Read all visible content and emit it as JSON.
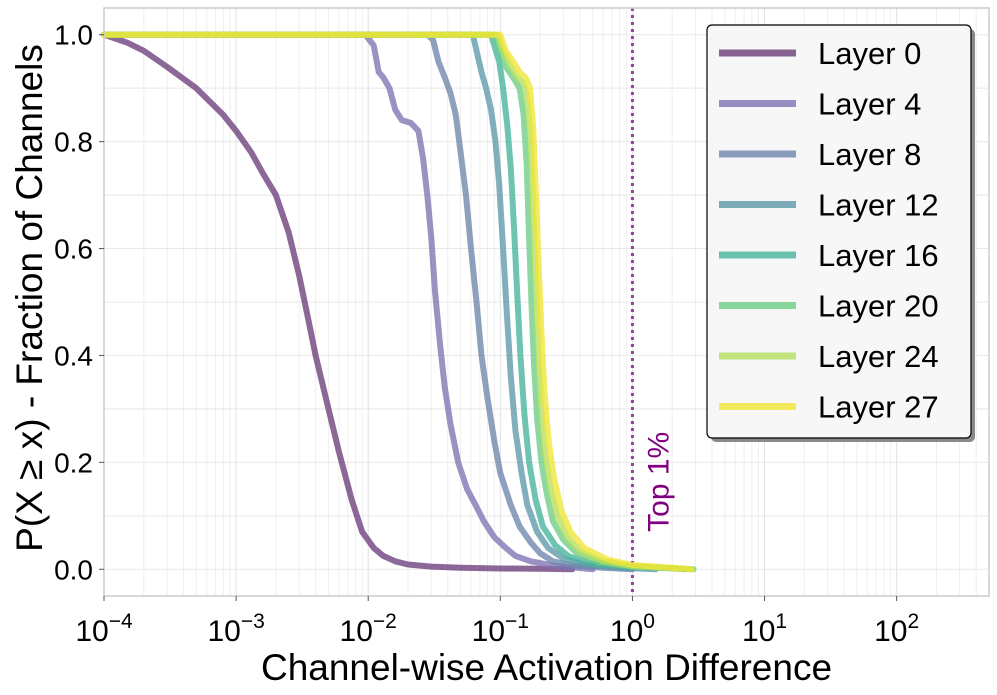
{
  "chart_data": {
    "type": "line",
    "xscale": "log",
    "xlabel": "Channel-wise Activation Difference",
    "ylabel": "P(X ≥ x) - Fraction of Channels",
    "xlim": [
      0.0001,
      500
    ],
    "ylim": [
      -0.05,
      1.05
    ],
    "grid": true,
    "legend_position": "top-right",
    "xticks": [
      {
        "value": 0.0001,
        "base": "10",
        "exp": "−4"
      },
      {
        "value": 0.001,
        "base": "10",
        "exp": "−3"
      },
      {
        "value": 0.01,
        "base": "10",
        "exp": "−2"
      },
      {
        "value": 0.1,
        "base": "10",
        "exp": "−1"
      },
      {
        "value": 1,
        "base": "10",
        "exp": "0"
      },
      {
        "value": 10,
        "base": "10",
        "exp": "1"
      },
      {
        "value": 100,
        "base": "10",
        "exp": "2"
      }
    ],
    "yticks": [
      {
        "value": 0.0,
        "label": "0.0"
      },
      {
        "value": 0.2,
        "label": "0.2"
      },
      {
        "value": 0.4,
        "label": "0.4"
      },
      {
        "value": 0.6,
        "label": "0.6"
      },
      {
        "value": 0.8,
        "label": "0.8"
      },
      {
        "value": 1.0,
        "label": "1.0"
      }
    ],
    "threshold": {
      "x": 1.0,
      "label": "Top 1%",
      "color": "#a43aa8",
      "text_color": "#800080"
    },
    "series": [
      {
        "name": "Layer 0",
        "color": "#6a3d7a",
        "points": [
          [
            0.0001,
            1.0
          ],
          [
            0.00015,
            0.985
          ],
          [
            0.0002,
            0.97
          ],
          [
            0.0003,
            0.94
          ],
          [
            0.0005,
            0.9
          ],
          [
            0.0008,
            0.85
          ],
          [
            0.001,
            0.82
          ],
          [
            0.0013,
            0.78
          ],
          [
            0.0016,
            0.74
          ],
          [
            0.002,
            0.7
          ],
          [
            0.0025,
            0.63
          ],
          [
            0.003,
            0.55
          ],
          [
            0.0035,
            0.47
          ],
          [
            0.004,
            0.4
          ],
          [
            0.005,
            0.3
          ],
          [
            0.006,
            0.22
          ],
          [
            0.0075,
            0.13
          ],
          [
            0.009,
            0.07
          ],
          [
            0.011,
            0.04
          ],
          [
            0.013,
            0.025
          ],
          [
            0.016,
            0.015
          ],
          [
            0.02,
            0.009
          ],
          [
            0.03,
            0.005
          ],
          [
            0.05,
            0.003
          ],
          [
            0.1,
            0.0015
          ],
          [
            0.2,
            0.0008
          ],
          [
            0.35,
            0.0
          ]
        ]
      },
      {
        "name": "Layer 4",
        "color": "#7f72b1",
        "points": [
          [
            0.0001,
            1.0
          ],
          [
            0.005,
            1.0
          ],
          [
            0.0095,
            1.0
          ],
          [
            0.011,
            0.98
          ],
          [
            0.012,
            0.93
          ],
          [
            0.013,
            0.92
          ],
          [
            0.0145,
            0.9
          ],
          [
            0.016,
            0.86
          ],
          [
            0.018,
            0.84
          ],
          [
            0.021,
            0.835
          ],
          [
            0.024,
            0.82
          ],
          [
            0.026,
            0.77
          ],
          [
            0.028,
            0.7
          ],
          [
            0.03,
            0.62
          ],
          [
            0.032,
            0.52
          ],
          [
            0.035,
            0.42
          ],
          [
            0.038,
            0.34
          ],
          [
            0.042,
            0.27
          ],
          [
            0.048,
            0.2
          ],
          [
            0.056,
            0.15
          ],
          [
            0.065,
            0.12
          ],
          [
            0.075,
            0.09
          ],
          [
            0.09,
            0.06
          ],
          [
            0.11,
            0.04
          ],
          [
            0.13,
            0.025
          ],
          [
            0.17,
            0.015
          ],
          [
            0.25,
            0.007
          ],
          [
            0.5,
            0.0
          ]
        ]
      },
      {
        "name": "Layer 8",
        "color": "#6d85ac",
        "points": [
          [
            0.0001,
            1.0
          ],
          [
            0.01,
            1.0
          ],
          [
            0.028,
            1.0
          ],
          [
            0.031,
            0.99
          ],
          [
            0.034,
            0.95
          ],
          [
            0.038,
            0.92
          ],
          [
            0.042,
            0.89
          ],
          [
            0.046,
            0.85
          ],
          [
            0.05,
            0.78
          ],
          [
            0.055,
            0.7
          ],
          [
            0.06,
            0.6
          ],
          [
            0.066,
            0.5
          ],
          [
            0.072,
            0.4
          ],
          [
            0.08,
            0.32
          ],
          [
            0.09,
            0.24
          ],
          [
            0.1,
            0.18
          ],
          [
            0.12,
            0.12
          ],
          [
            0.14,
            0.08
          ],
          [
            0.17,
            0.05
          ],
          [
            0.2,
            0.03
          ],
          [
            0.25,
            0.015
          ],
          [
            0.35,
            0.007
          ],
          [
            0.6,
            0.003
          ],
          [
            1.0,
            0.0
          ]
        ]
      },
      {
        "name": "Layer 12",
        "color": "#5d98a8",
        "points": [
          [
            0.0001,
            1.0
          ],
          [
            0.02,
            1.0
          ],
          [
            0.062,
            1.0
          ],
          [
            0.066,
            0.97
          ],
          [
            0.072,
            0.93
          ],
          [
            0.078,
            0.9
          ],
          [
            0.085,
            0.86
          ],
          [
            0.092,
            0.8
          ],
          [
            0.098,
            0.72
          ],
          [
            0.105,
            0.6
          ],
          [
            0.112,
            0.48
          ],
          [
            0.12,
            0.36
          ],
          [
            0.13,
            0.26
          ],
          [
            0.145,
            0.18
          ],
          [
            0.16,
            0.12
          ],
          [
            0.19,
            0.07
          ],
          [
            0.23,
            0.04
          ],
          [
            0.3,
            0.02
          ],
          [
            0.45,
            0.008
          ],
          [
            0.8,
            0.003
          ],
          [
            1.5,
            0.0
          ]
        ]
      },
      {
        "name": "Layer 16",
        "color": "#45b39a",
        "points": [
          [
            0.0001,
            1.0
          ],
          [
            0.03,
            1.0
          ],
          [
            0.085,
            1.0
          ],
          [
            0.09,
            0.98
          ],
          [
            0.098,
            0.95
          ],
          [
            0.105,
            0.9
          ],
          [
            0.113,
            0.83
          ],
          [
            0.12,
            0.75
          ],
          [
            0.127,
            0.64
          ],
          [
            0.134,
            0.52
          ],
          [
            0.142,
            0.4
          ],
          [
            0.152,
            0.29
          ],
          [
            0.165,
            0.2
          ],
          [
            0.185,
            0.13
          ],
          [
            0.21,
            0.08
          ],
          [
            0.26,
            0.045
          ],
          [
            0.33,
            0.024
          ],
          [
            0.5,
            0.01
          ],
          [
            1.0,
            0.004
          ],
          [
            2.0,
            0.002
          ],
          [
            2.5,
            0.0
          ]
        ]
      },
      {
        "name": "Layer 20",
        "color": "#6dcd86",
        "points": [
          [
            0.0001,
            1.0
          ],
          [
            0.04,
            1.0
          ],
          [
            0.09,
            1.0
          ],
          [
            0.1,
            0.97
          ],
          [
            0.11,
            0.94
          ],
          [
            0.125,
            0.92
          ],
          [
            0.14,
            0.9
          ],
          [
            0.15,
            0.85
          ],
          [
            0.158,
            0.76
          ],
          [
            0.165,
            0.62
          ],
          [
            0.172,
            0.5
          ],
          [
            0.18,
            0.38
          ],
          [
            0.19,
            0.28
          ],
          [
            0.205,
            0.2
          ],
          [
            0.225,
            0.14
          ],
          [
            0.25,
            0.09
          ],
          [
            0.3,
            0.055
          ],
          [
            0.38,
            0.03
          ],
          [
            0.55,
            0.013
          ],
          [
            1.0,
            0.005
          ],
          [
            2.0,
            0.002
          ],
          [
            2.9,
            0.0
          ]
        ]
      },
      {
        "name": "Layer 24",
        "color": "#b5df5c",
        "points": [
          [
            0.0001,
            1.0
          ],
          [
            0.05,
            1.0
          ],
          [
            0.095,
            1.0
          ],
          [
            0.105,
            0.97
          ],
          [
            0.12,
            0.94
          ],
          [
            0.135,
            0.92
          ],
          [
            0.15,
            0.91
          ],
          [
            0.16,
            0.88
          ],
          [
            0.17,
            0.8
          ],
          [
            0.177,
            0.68
          ],
          [
            0.185,
            0.55
          ],
          [
            0.193,
            0.42
          ],
          [
            0.203,
            0.31
          ],
          [
            0.218,
            0.22
          ],
          [
            0.24,
            0.15
          ],
          [
            0.27,
            0.1
          ],
          [
            0.32,
            0.06
          ],
          [
            0.4,
            0.034
          ],
          [
            0.6,
            0.015
          ],
          [
            1.0,
            0.006
          ],
          [
            2.0,
            0.002
          ],
          [
            2.8,
            0.0
          ]
        ]
      },
      {
        "name": "Layer 27",
        "color": "#f0e535",
        "points": [
          [
            0.0001,
            1.0
          ],
          [
            0.05,
            1.0
          ],
          [
            0.1,
            1.0
          ],
          [
            0.11,
            0.97
          ],
          [
            0.125,
            0.95
          ],
          [
            0.14,
            0.93
          ],
          [
            0.155,
            0.92
          ],
          [
            0.168,
            0.9
          ],
          [
            0.178,
            0.82
          ],
          [
            0.186,
            0.7
          ],
          [
            0.195,
            0.57
          ],
          [
            0.205,
            0.44
          ],
          [
            0.216,
            0.33
          ],
          [
            0.232,
            0.24
          ],
          [
            0.255,
            0.17
          ],
          [
            0.29,
            0.11
          ],
          [
            0.34,
            0.07
          ],
          [
            0.43,
            0.04
          ],
          [
            0.65,
            0.018
          ],
          [
            1.0,
            0.008
          ],
          [
            2.0,
            0.003
          ],
          [
            2.8,
            0.0
          ]
        ]
      }
    ]
  }
}
